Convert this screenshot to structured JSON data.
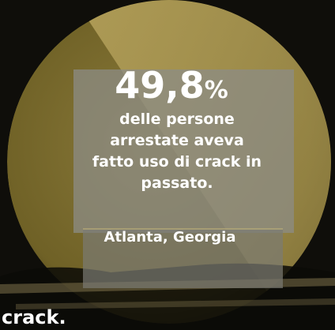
{
  "stat": {
    "value": "49,8",
    "unit": "%"
  },
  "description": [
    "delle persone",
    "arrestate aveva",
    "fatto uso di crack in",
    "passato."
  ],
  "location": "Atlanta, Georgia",
  "brand": "crack."
}
